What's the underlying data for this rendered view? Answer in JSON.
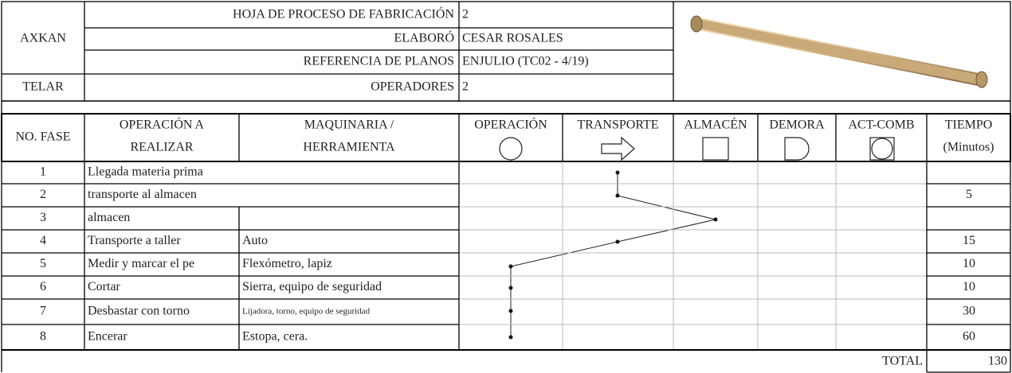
{
  "header": {
    "company": "AXKAN",
    "area": "TELAR",
    "fields": [
      {
        "label": "HOJA DE PROCESO DE FABRICACIÓN",
        "value": "2"
      },
      {
        "label": "ELABORÓ",
        "value": "CESAR ROSALES"
      },
      {
        "label": "REFERENCIA DE PLANOS",
        "value": "ENJULIO (TC02 - 4/19)"
      },
      {
        "label": "OPERADORES",
        "value": "2"
      }
    ]
  },
  "table": {
    "columns": [
      "NO. FASE",
      [
        "OPERACIÓN A",
        "REALIZAR"
      ],
      [
        "MAQUINARIA /",
        "HERRAMIENTA"
      ],
      "OPERACIÓN",
      "TRANSPORTE",
      "ALMACÉN",
      "DEMORA",
      "ACT-COMB",
      [
        "TIEMPO",
        "(Minutos)"
      ]
    ],
    "rows": [
      {
        "fase": 1,
        "operacion": "Llegada materia prima"
      },
      {
        "fase": 2,
        "operacion": "transporte al almacen",
        "tiempo": 5
      },
      {
        "fase": 3,
        "operacion": "almacen"
      },
      {
        "fase": 4,
        "operacion": "Transporte a taller",
        "maquinaria": "Auto",
        "tiempo": 15
      },
      {
        "fase": 5,
        "operacion": "Medir y marcar el pe",
        "maquinaria": "Flexómetro, lapiz",
        "tiempo": 10
      },
      {
        "fase": 6,
        "operacion": "Cortar",
        "maquinaria": "Sierra, equipo de seguridad",
        "tiempo": 10
      },
      {
        "fase": 7,
        "operacion": "Desbastar con torno",
        "maquinaria": "Lijadora, torno, equipo de seguridad",
        "tiempo": 30
      },
      {
        "fase": 8,
        "operacion": "Encerar",
        "maquinaria": "Estopa, cera.",
        "tiempo": 60
      }
    ],
    "total_label": "TOTAL",
    "total": 130
  }
}
